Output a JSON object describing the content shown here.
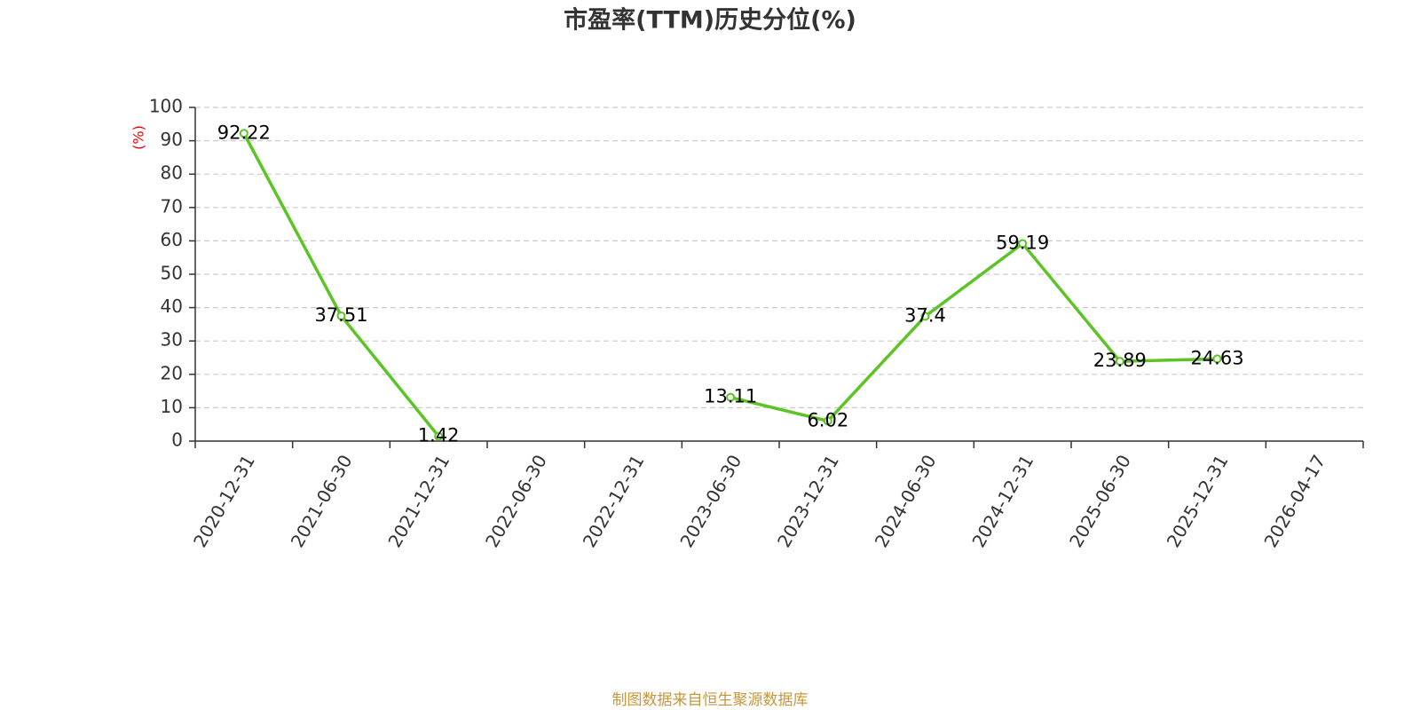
{
  "chart_data": {
    "type": "line",
    "title": "市盈率(TTM)历史分位(%)",
    "ylabel": "(%)",
    "source": "制图数据来自恒生聚源数据库",
    "categories": [
      "2020-12-31",
      "2021-06-30",
      "2021-12-31",
      "2022-06-30",
      "2022-12-31",
      "2023-06-30",
      "2023-12-31",
      "2024-06-30",
      "2024-12-31",
      "2025-06-30",
      "2025-12-31",
      "2026-04-17"
    ],
    "values": [
      92.22,
      37.51,
      1.42,
      null,
      null,
      13.11,
      6.02,
      37.4,
      59.19,
      23.89,
      24.63,
      null
    ],
    "color": "#5cc424",
    "ylim": [
      0,
      100
    ],
    "yticks": [
      0,
      10,
      20,
      30,
      40,
      50,
      60,
      70,
      80,
      90,
      100
    ],
    "grid": true
  }
}
